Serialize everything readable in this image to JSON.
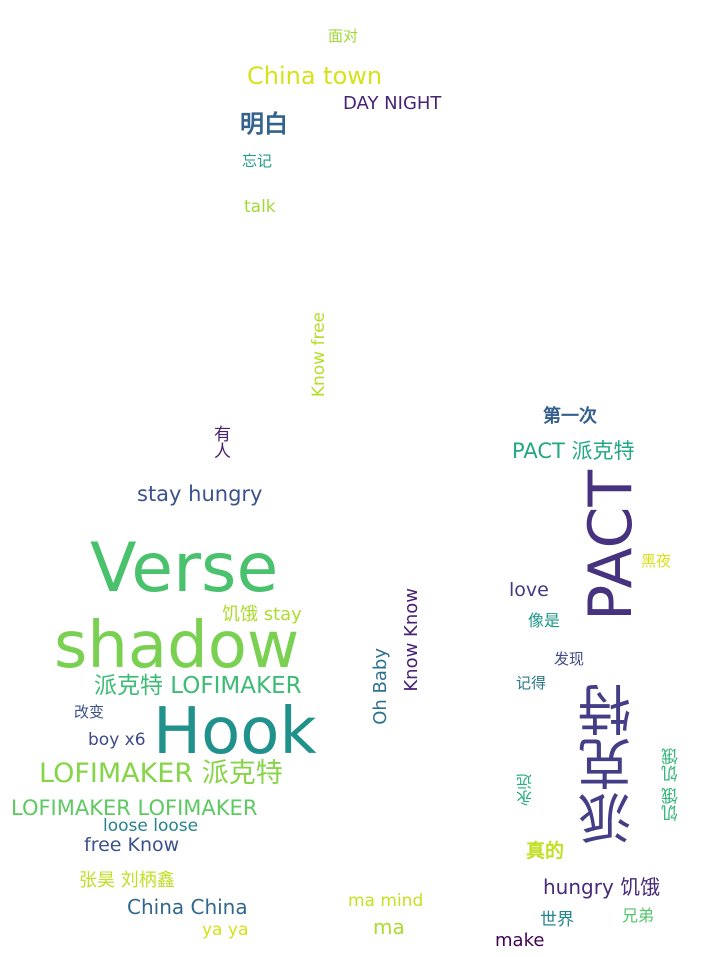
{
  "cloud": {
    "words": [
      {
        "text": "面对",
        "color": "#a0da39"
      },
      {
        "text": "China town",
        "color": "#d6e21b"
      },
      {
        "text": "DAY NIGHT",
        "color": "#482475"
      },
      {
        "text": "明白",
        "color": "#33638d"
      },
      {
        "text": "忘记",
        "color": "#1f9e89"
      },
      {
        "text": "talk",
        "color": "#a0da39"
      },
      {
        "text": "Know free",
        "color": "#b5de2b"
      },
      {
        "text": "有人",
        "color": "#481f70"
      },
      {
        "text": "第一次",
        "color": "#355f8d"
      },
      {
        "text": "PACT 派克特",
        "color": "#22a884"
      },
      {
        "text": "stay hungry",
        "color": "#3b528b"
      },
      {
        "text": "Verse",
        "color": "#4ac16d"
      },
      {
        "text": "PACT",
        "color": "#46327e"
      },
      {
        "text": "黑夜",
        "color": "#d8e219"
      },
      {
        "text": "love",
        "color": "#443983"
      },
      {
        "text": "饥饿 stay",
        "color": "#addc30"
      },
      {
        "text": "像是",
        "color": "#1f968b"
      },
      {
        "text": "Know Know",
        "color": "#482173"
      },
      {
        "text": "shadow",
        "color": "#7ad151"
      },
      {
        "text": "发现",
        "color": "#3e4a89"
      },
      {
        "text": "Oh Baby",
        "color": "#2c728e"
      },
      {
        "text": "派克特 LOFIMAKER",
        "color": "#3dbc74"
      },
      {
        "text": "记得",
        "color": "#2a788e"
      },
      {
        "text": "改变",
        "color": "#3b528b"
      },
      {
        "text": "派克特",
        "color": "#433e85"
      },
      {
        "text": "Hook",
        "color": "#21918c"
      },
      {
        "text": "boy x6",
        "color": "#3e4a89"
      },
      {
        "text": "饥饿 饥饿",
        "color": "#35b779"
      },
      {
        "text": "LOFIMAKER 派克特",
        "color": "#86d549"
      },
      {
        "text": "永远",
        "color": "#29af7f"
      },
      {
        "text": "LOFIMAKER LOFIMAKER",
        "color": "#5ec962"
      },
      {
        "text": "loose loose",
        "color": "#27808e"
      },
      {
        "text": "free Know",
        "color": "#3b528b"
      },
      {
        "text": "真的",
        "color": "#c2df23"
      },
      {
        "text": "张昊 刘柄鑫",
        "color": "#c0df25"
      },
      {
        "text": "hungry 饥饿",
        "color": "#472c7a"
      },
      {
        "text": "ma mind",
        "color": "#c8e020"
      },
      {
        "text": "China China",
        "color": "#31688e"
      },
      {
        "text": "世界",
        "color": "#25858e"
      },
      {
        "text": "兄弟",
        "color": "#52c569"
      },
      {
        "text": "ma",
        "color": "#addc30"
      },
      {
        "text": "ya ya",
        "color": "#d2e21b"
      },
      {
        "text": "make",
        "color": "#440154"
      }
    ]
  }
}
